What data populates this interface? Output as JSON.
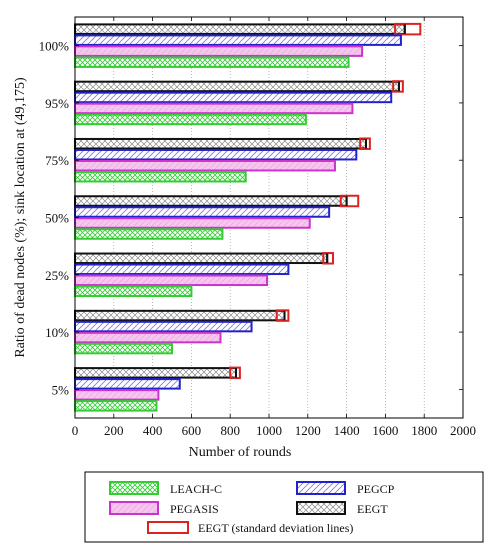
{
  "chart_data": {
    "type": "bar",
    "orientation": "horizontal",
    "categories": [
      "5%",
      "10%",
      "25%",
      "50%",
      "75%",
      "95%",
      "100%"
    ],
    "xlabel": "Number of rounds",
    "ylabel": "Ratio of dead nodes (%); sink location at (49,175)",
    "xlim": [
      0,
      2000
    ],
    "xticks": [
      0,
      200,
      400,
      600,
      800,
      1000,
      1200,
      1400,
      1600,
      1800,
      2000
    ],
    "grid": "vertical dotted",
    "legend_position": "bottom",
    "series": [
      {
        "name": "LEACH-C",
        "color": "#33cc33",
        "pattern": "crosshatch",
        "values": [
          420,
          500,
          600,
          760,
          880,
          1190,
          1410
        ]
      },
      {
        "name": "PEGASIS",
        "color": "#cc33cc",
        "pattern": "solid-fill",
        "values": [
          430,
          750,
          990,
          1210,
          1340,
          1430,
          1480
        ]
      },
      {
        "name": "PEGCP",
        "color": "#2222cc",
        "pattern": "diagonal",
        "values": [
          540,
          910,
          1100,
          1310,
          1450,
          1630,
          1680
        ]
      },
      {
        "name": "EEGT",
        "color": "#111111",
        "pattern": "crosshatch",
        "values": [
          830,
          1080,
          1300,
          1400,
          1500,
          1670,
          1700
        ]
      }
    ],
    "error_bars": {
      "name": "EEGT (standard deviation lines)",
      "color": "#dd2222",
      "low": [
        800,
        1040,
        1280,
        1370,
        1470,
        1640,
        1650
      ],
      "high": [
        850,
        1100,
        1330,
        1460,
        1520,
        1690,
        1780
      ]
    }
  }
}
